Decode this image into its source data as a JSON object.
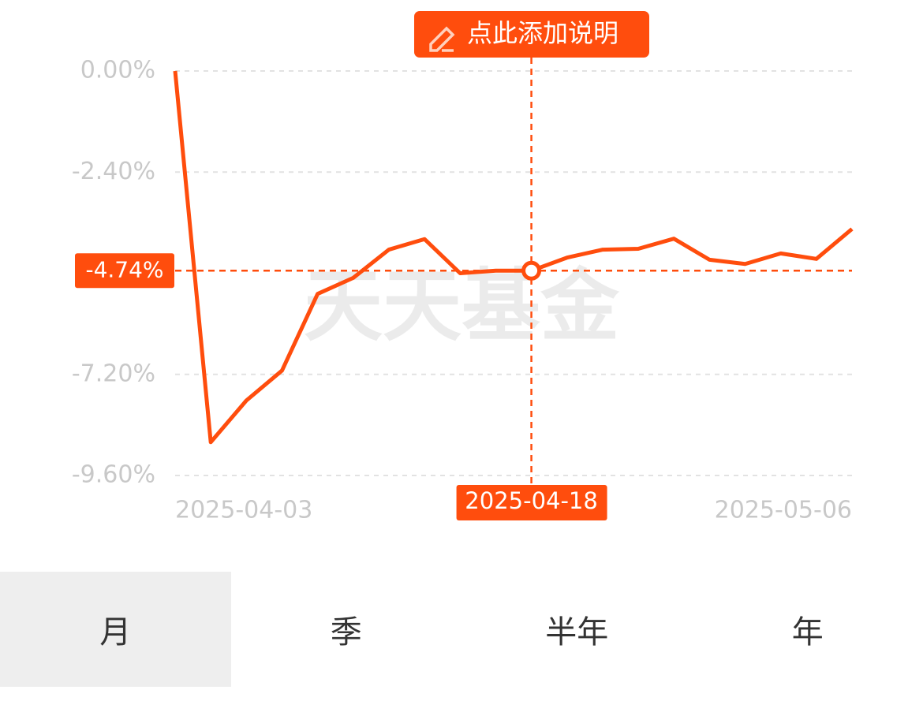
{
  "chart_data": {
    "type": "line",
    "color": "#ff4d0d",
    "categories": [
      "2025-04-03",
      null,
      null,
      null,
      null,
      null,
      null,
      null,
      null,
      null,
      "2025-04-18",
      null,
      null,
      null,
      null,
      null,
      null,
      null,
      null,
      "2025-05-06"
    ],
    "values": [
      0,
      -8.81,
      -7.82,
      -7.11,
      -5.29,
      -4.91,
      -4.24,
      -3.99,
      -4.8,
      -4.74,
      -4.74,
      -4.43,
      -4.24,
      -4.22,
      -3.98,
      -4.48,
      -4.58,
      -4.33,
      -4.46,
      -3.75
    ],
    "value_labels": [
      null,
      null,
      null,
      null,
      null,
      null,
      null,
      null,
      null,
      null,
      "-4.74%",
      null,
      null,
      null,
      null,
      null,
      null,
      null,
      null,
      null
    ],
    "ylim": [
      -9.6,
      0
    ],
    "yticks": [
      {
        "value": 0,
        "label": "0.00%"
      },
      {
        "value": -2.4,
        "label": "-2.40%"
      },
      {
        "value": -7.2,
        "label": "-7.20%"
      },
      {
        "value": -9.6,
        "label": "-9.60%"
      }
    ],
    "grid": true,
    "watermark": "天天基金"
  },
  "note_button": "点此添加说明",
  "tabs": [
    {
      "label": "月",
      "selected": true
    },
    {
      "label": "季",
      "selected": false
    },
    {
      "label": "半年",
      "selected": false
    },
    {
      "label": "年",
      "selected": false
    }
  ]
}
